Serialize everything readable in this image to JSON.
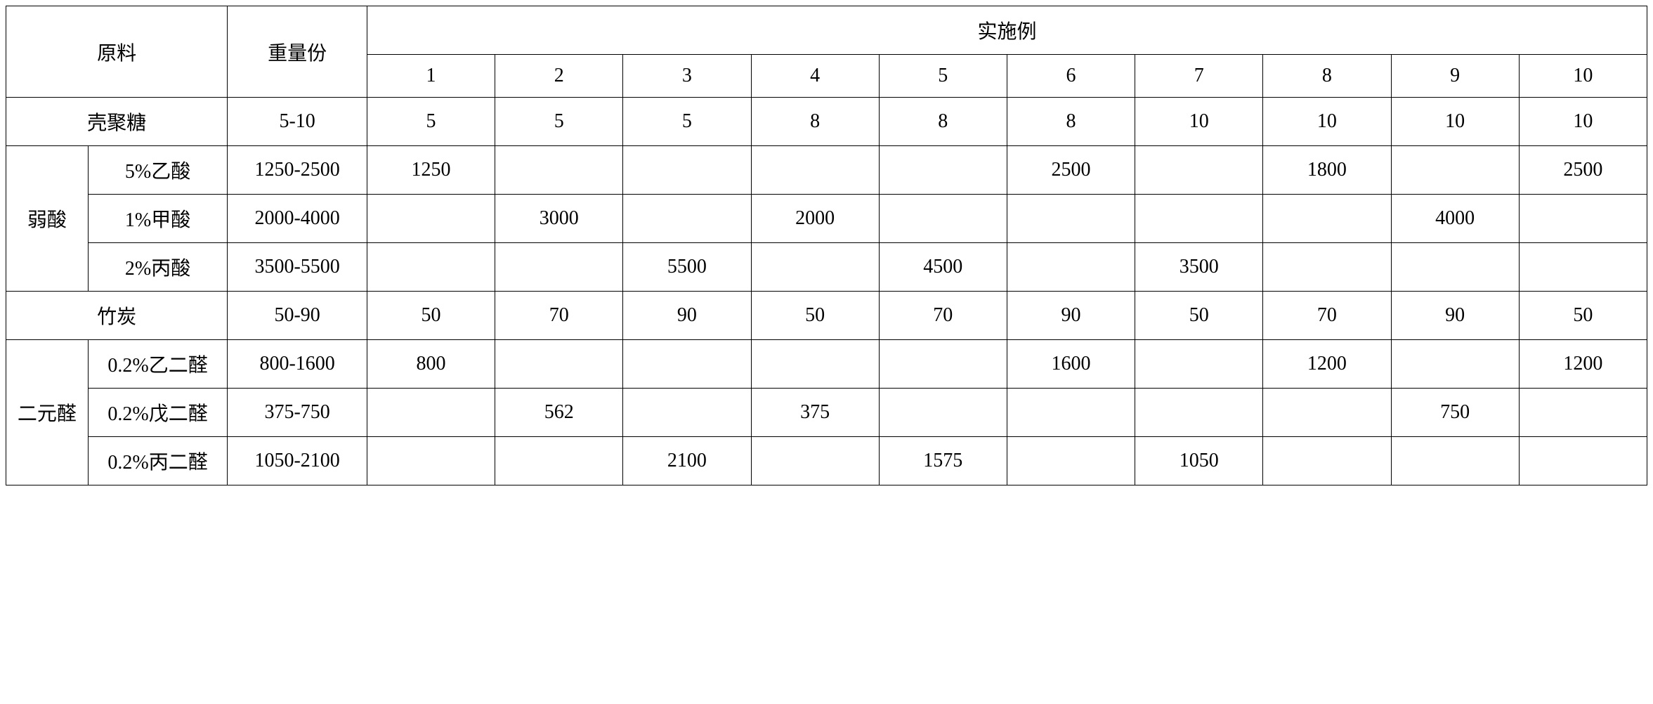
{
  "table": {
    "headers": {
      "raw_material": "原料",
      "weight_parts": "重量份",
      "example": "实施例",
      "example_nums": [
        "1",
        "2",
        "3",
        "4",
        "5",
        "6",
        "7",
        "8",
        "9",
        "10"
      ]
    },
    "rows": [
      {
        "group": null,
        "label": "壳聚糖",
        "weight": "5-10",
        "values": [
          "5",
          "5",
          "5",
          "8",
          "8",
          "8",
          "10",
          "10",
          "10",
          "10"
        ],
        "merged_label": true
      },
      {
        "group": "弱酸",
        "group_rowspan": 3,
        "group_first": true,
        "label": "5%乙酸",
        "weight": "1250-2500",
        "values": [
          "1250",
          "",
          "",
          "",
          "",
          "2500",
          "",
          "1800",
          "",
          "2500"
        ]
      },
      {
        "group": "弱酸",
        "group_first": false,
        "label": "1%甲酸",
        "weight": "2000-4000",
        "values": [
          "",
          "3000",
          "",
          "2000",
          "",
          "",
          "",
          "",
          "4000",
          ""
        ]
      },
      {
        "group": "弱酸",
        "group_first": false,
        "label": "2%丙酸",
        "weight": "3500-5500",
        "values": [
          "",
          "",
          "5500",
          "",
          "4500",
          "",
          "3500",
          "",
          "",
          ""
        ]
      },
      {
        "group": null,
        "label": "竹炭",
        "weight": "50-90",
        "values": [
          "50",
          "70",
          "90",
          "50",
          "70",
          "90",
          "50",
          "70",
          "90",
          "50"
        ],
        "merged_label": true
      },
      {
        "group": "二元醛",
        "group_rowspan": 3,
        "group_first": true,
        "label": "0.2%乙二醛",
        "weight": "800-1600",
        "values": [
          "800",
          "",
          "",
          "",
          "",
          "1600",
          "",
          "1200",
          "",
          "1200"
        ]
      },
      {
        "group": "二元醛",
        "group_first": false,
        "label": "0.2%戊二醛",
        "weight": "375-750",
        "values": [
          "",
          "562",
          "",
          "375",
          "",
          "",
          "",
          "",
          "750",
          ""
        ]
      },
      {
        "group": "二元醛",
        "group_first": false,
        "label": "0.2%丙二醛",
        "weight": "1050-2100",
        "values": [
          "",
          "",
          "2100",
          "",
          "1575",
          "",
          "1050",
          "",
          "",
          ""
        ]
      }
    ],
    "styling": {
      "border_color": "#000000",
      "background_color": "#ffffff",
      "text_color": "#000000",
      "font_family": "SimSun",
      "font_size": 28,
      "cell_padding_v": 14,
      "cell_padding_h": 4
    }
  }
}
